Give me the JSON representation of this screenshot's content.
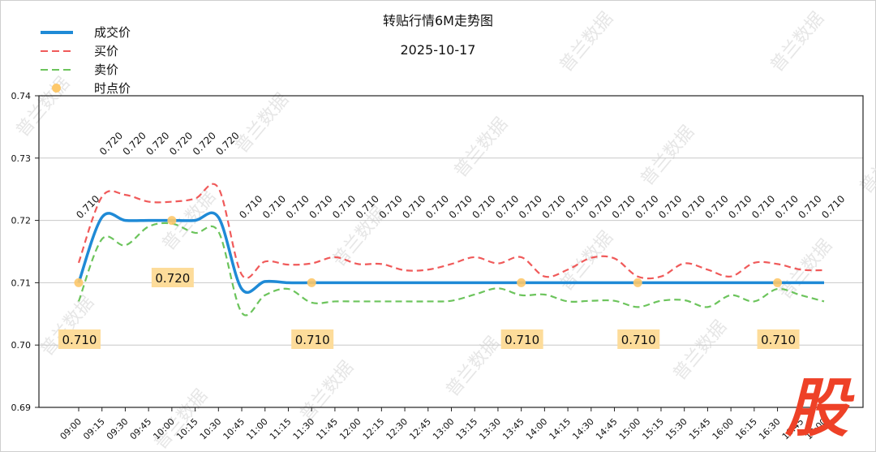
{
  "chart_data": {
    "type": "line",
    "title": "转贴行情6M走势图",
    "subtitle": "2025-10-17",
    "xlabel": "",
    "ylabel": "",
    "ylim": [
      0.69,
      0.74
    ],
    "yticks": [
      "0.69",
      "0.70",
      "0.71",
      "0.72",
      "0.73",
      "0.74"
    ],
    "grid": "horizontal",
    "legend_position": "upper left (outside, above axes)",
    "categories": [
      "09:00",
      "09:15",
      "09:30",
      "09:45",
      "10:00",
      "10:15",
      "10:30",
      "10:45",
      "11:00",
      "11:15",
      "11:30",
      "11:45",
      "12:00",
      "12:15",
      "12:30",
      "12:45",
      "13:00",
      "13:15",
      "13:30",
      "13:45",
      "14:00",
      "14:15",
      "14:30",
      "14:45",
      "15:00",
      "15:15",
      "15:30",
      "15:45",
      "16:00",
      "16:15",
      "16:30",
      "16:45",
      "17:00"
    ],
    "series": [
      {
        "name": "成交价",
        "style": "solid",
        "color": "#1f8ad6",
        "values": [
          0.71,
          0.7205,
          0.72,
          0.72,
          0.72,
          0.72,
          0.7205,
          0.709,
          0.7102,
          0.71,
          0.71,
          0.71,
          0.71,
          0.71,
          0.71,
          0.71,
          0.71,
          0.71,
          0.71,
          0.71,
          0.71,
          0.71,
          0.71,
          0.71,
          0.71,
          0.71,
          0.71,
          0.71,
          0.71,
          0.71,
          0.71,
          0.71,
          0.71
        ]
      },
      {
        "name": "买价",
        "style": "dashed",
        "color": "#f05a5a",
        "values": [
          0.7132,
          0.7238,
          0.7241,
          0.723,
          0.723,
          0.7235,
          0.7252,
          0.7113,
          0.7134,
          0.7129,
          0.7131,
          0.7141,
          0.713,
          0.713,
          0.712,
          0.7121,
          0.713,
          0.7141,
          0.7131,
          0.7141,
          0.711,
          0.7121,
          0.714,
          0.7139,
          0.711,
          0.711,
          0.7131,
          0.7121,
          0.711,
          0.7132,
          0.713,
          0.7121,
          0.712
        ]
      },
      {
        "name": "卖价",
        "style": "dashed",
        "color": "#6cc45c",
        "values": [
          0.707,
          0.717,
          0.716,
          0.719,
          0.7195,
          0.718,
          0.7182,
          0.7052,
          0.708,
          0.709,
          0.7068,
          0.707,
          0.707,
          0.707,
          0.707,
          0.707,
          0.7071,
          0.7081,
          0.7091,
          0.708,
          0.7081,
          0.707,
          0.7071,
          0.7071,
          0.7061,
          0.7071,
          0.7072,
          0.7061,
          0.708,
          0.707,
          0.709,
          0.708,
          0.707
        ]
      },
      {
        "name": "时点价",
        "style": "marker",
        "color": "#fdc86a",
        "points": [
          {
            "x": "09:00",
            "y": 0.71
          },
          {
            "x": "10:00",
            "y": 0.72
          },
          {
            "x": "11:30",
            "y": 0.71
          },
          {
            "x": "13:45",
            "y": 0.71
          },
          {
            "x": "15:00",
            "y": 0.71
          },
          {
            "x": "16:30",
            "y": 0.71
          }
        ]
      }
    ],
    "top_labels": [
      "0.710",
      "0.720",
      "0.720",
      "0.720",
      "0.720",
      "0.720",
      "0.720",
      "0.710",
      "0.710",
      "0.710",
      "0.710",
      "0.710",
      "0.710",
      "0.710",
      "0.710",
      "0.710",
      "0.710",
      "0.710",
      "0.710",
      "0.710",
      "0.710",
      "0.710",
      "0.710",
      "0.710",
      "0.710",
      "0.710",
      "0.710",
      "0.710",
      "0.710",
      "0.710",
      "0.710",
      "0.710",
      "0.710"
    ],
    "boxed_labels": [
      {
        "x": "09:00",
        "text": "0.710",
        "pos": "low"
      },
      {
        "x": "10:00",
        "text": "0.720",
        "pos": "mid"
      },
      {
        "x": "11:30",
        "text": "0.710",
        "pos": "low"
      },
      {
        "x": "13:45",
        "text": "0.710",
        "pos": "low"
      },
      {
        "x": "15:00",
        "text": "0.710",
        "pos": "low"
      },
      {
        "x": "16:30",
        "text": "0.710",
        "pos": "low"
      }
    ]
  },
  "legend": {
    "items": [
      {
        "label": "成交价",
        "color": "#1f8ad6",
        "kind": "solid"
      },
      {
        "label": "买价",
        "color": "#f05a5a",
        "kind": "dashed"
      },
      {
        "label": "卖价",
        "color": "#6cc45c",
        "kind": "dashed"
      },
      {
        "label": "时点价",
        "color": "#fdc86a",
        "kind": "marker"
      }
    ]
  },
  "watermark": "普兰数据",
  "logo": "股",
  "colors": {
    "box_bg": "#fddc9a",
    "grid": "#c8c8c8",
    "axis": "#222222"
  }
}
